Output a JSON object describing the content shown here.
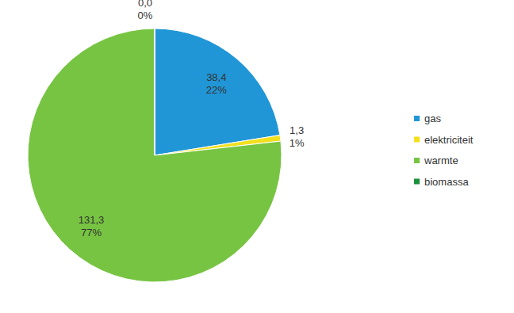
{
  "chart_data": {
    "type": "pie",
    "categories": [
      "gas",
      "elektriciteit",
      "warmte",
      "biomassa"
    ],
    "values": [
      38.4,
      1.3,
      131.3,
      0.0
    ],
    "value_labels": [
      "38,4",
      "1,3",
      "131,3",
      "0,0"
    ],
    "percentages": [
      {
        "value": 22,
        "label": "22%"
      },
      {
        "value": 1,
        "label": "1%"
      },
      {
        "value": 77,
        "label": "77%"
      },
      {
        "value": 0,
        "label": "0%"
      }
    ],
    "colors": [
      "#2196d6",
      "#f2e01c",
      "#77c442",
      "#1a8f3c"
    ],
    "data_labels": true,
    "legend": "right"
  }
}
